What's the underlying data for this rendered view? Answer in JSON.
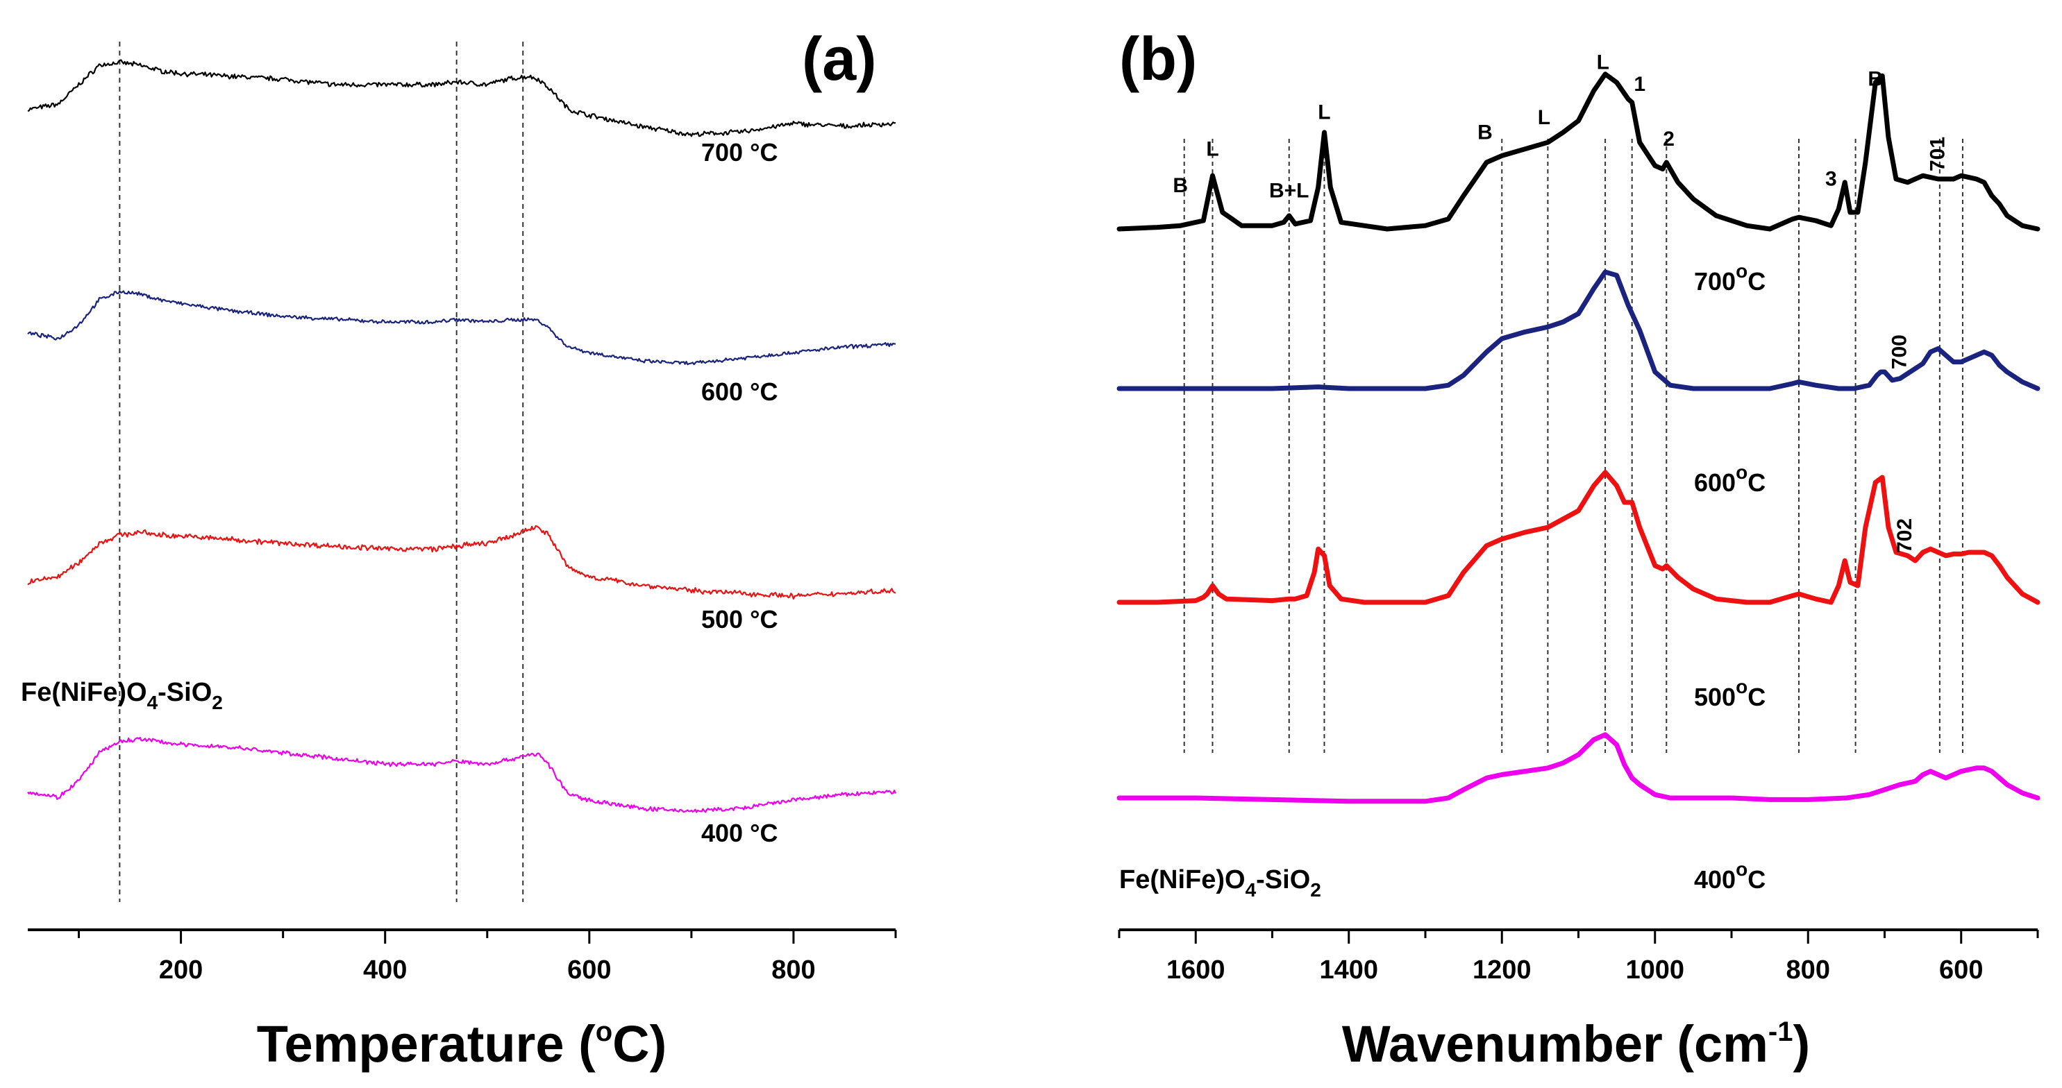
{
  "chart_data": [
    {
      "type": "line",
      "panel_label": "(a)",
      "title": "",
      "xlabel": "Temperature (°C)",
      "xlabel_main": "Temperature (",
      "xlabel_unit_sup": "o",
      "xlabel_tail": "C)",
      "ylabel": "",
      "xlim": [
        50,
        900
      ],
      "xticks": [
        200,
        400,
        600,
        800
      ],
      "xtick_labels": [
        "200",
        "400",
        "600",
        "800"
      ],
      "sample_label": {
        "main": "Fe(NiFe)O",
        "sub1": "4",
        "mid": "-SiO",
        "sub2": "2"
      },
      "reference_lines_x": [
        140,
        470,
        535
      ],
      "series": [
        {
          "name": "700 °C",
          "label": "700 °C",
          "color": "#000000",
          "noise": 0.45,
          "x": [
            50,
            80,
            100,
            120,
            140,
            160,
            180,
            200,
            250,
            300,
            350,
            400,
            450,
            470,
            500,
            520,
            540,
            550,
            560,
            570,
            580,
            600,
            650,
            700,
            750,
            800,
            850,
            900
          ],
          "y": [
            0.15,
            0.25,
            0.6,
            0.95,
            1.0,
            0.95,
            0.85,
            0.8,
            0.75,
            0.7,
            0.6,
            0.6,
            0.6,
            0.65,
            0.6,
            0.7,
            0.75,
            0.7,
            0.55,
            0.35,
            0.15,
            0.05,
            -0.15,
            -0.3,
            -0.25,
            -0.1,
            -0.15,
            -0.1
          ]
        },
        {
          "name": "600 °C",
          "label": "600 °C",
          "color": "#1a237e",
          "noise": 0.35,
          "x": [
            50,
            80,
            100,
            120,
            140,
            160,
            180,
            200,
            250,
            300,
            350,
            400,
            450,
            470,
            500,
            520,
            540,
            550,
            560,
            570,
            580,
            600,
            650,
            700,
            750,
            800,
            850,
            900
          ],
          "y": [
            0.25,
            0.15,
            0.4,
            0.85,
            1.0,
            0.95,
            0.85,
            0.78,
            0.65,
            0.55,
            0.5,
            0.45,
            0.45,
            0.5,
            0.45,
            0.48,
            0.5,
            0.48,
            0.35,
            0.15,
            0.0,
            -0.1,
            -0.25,
            -0.3,
            -0.2,
            -0.1,
            0.0,
            0.05
          ]
        },
        {
          "name": "500 °C",
          "label": "500 °C",
          "color": "#ee1111",
          "noise": 0.5,
          "x": [
            50,
            80,
            100,
            120,
            140,
            160,
            180,
            200,
            250,
            300,
            350,
            400,
            450,
            470,
            500,
            520,
            540,
            550,
            560,
            570,
            580,
            600,
            650,
            700,
            750,
            800,
            850,
            900
          ],
          "y": [
            -0.05,
            0.05,
            0.3,
            0.65,
            0.8,
            0.85,
            0.8,
            0.78,
            0.72,
            0.65,
            0.6,
            0.55,
            0.55,
            0.6,
            0.65,
            0.75,
            0.9,
            0.95,
            0.8,
            0.5,
            0.2,
            0.05,
            -0.1,
            -0.2,
            -0.25,
            -0.3,
            -0.25,
            -0.2
          ]
        },
        {
          "name": "400 °C",
          "label": "400 °C",
          "color": "#ee00ee",
          "noise": 0.4,
          "x": [
            50,
            80,
            100,
            120,
            140,
            160,
            180,
            200,
            250,
            300,
            350,
            400,
            450,
            470,
            500,
            520,
            540,
            550,
            560,
            570,
            580,
            600,
            650,
            700,
            750,
            800,
            850,
            900
          ],
          "y": [
            0.05,
            -0.05,
            0.25,
            0.75,
            0.95,
            1.0,
            0.95,
            0.9,
            0.85,
            0.75,
            0.65,
            0.55,
            0.55,
            0.6,
            0.55,
            0.62,
            0.72,
            0.72,
            0.55,
            0.25,
            0.0,
            -0.1,
            -0.25,
            -0.3,
            -0.25,
            -0.1,
            0.0,
            0.05
          ]
        }
      ]
    },
    {
      "type": "line",
      "panel_label": "(b)",
      "title": "",
      "xlabel": "Wavenumber (cm-1)",
      "xlabel_main": "Wavenumber (cm",
      "xlabel_unit_sup": "-1",
      "xlabel_tail": ")",
      "ylabel": "",
      "xlim": [
        1700,
        500
      ],
      "xticks": [
        1600,
        1400,
        1200,
        1000,
        800,
        600
      ],
      "xtick_labels": [
        "1600",
        "1400",
        "1200",
        "1000",
        "800",
        "600"
      ],
      "sample_label": {
        "main": "Fe(NiFe)O",
        "sub1": "4",
        "mid": "-SiO",
        "sub2": "2"
      },
      "reference_lines_x": [
        1615,
        1578,
        1478,
        1432,
        1200,
        1140,
        1065,
        1030,
        985,
        812,
        738,
        628,
        598
      ],
      "peak_labels": [
        {
          "text": "B",
          "x": 1620,
          "y": 0.22
        },
        {
          "text": "L",
          "x": 1578,
          "y": 0.44
        },
        {
          "text": "B+L",
          "x": 1478,
          "y": 0.19
        },
        {
          "text": "L",
          "x": 1432,
          "y": 0.66
        },
        {
          "text": "B",
          "x": 1222,
          "y": 0.54
        },
        {
          "text": "L",
          "x": 1145,
          "y": 0.63
        },
        {
          "text": "L",
          "x": 1068,
          "y": 0.96
        },
        {
          "text": "1",
          "x": 1020,
          "y": 0.83
        },
        {
          "text": "2",
          "x": 982,
          "y": 0.5
        },
        {
          "text": "3",
          "x": 770,
          "y": 0.26
        },
        {
          "text": "B",
          "x": 712,
          "y": 0.86
        }
      ],
      "rotated_labels": [
        {
          "text": "701",
          "x": 622,
          "y": 0.45
        },
        {
          "text": "700",
          "x": 672,
          "y": 0.22
        },
        {
          "text": "702",
          "x": 665,
          "y": 0.4
        }
      ],
      "series": [
        {
          "name": "700 °C",
          "label_main": "700",
          "label_sup": "o",
          "label_tail": "C",
          "color": "#000000",
          "x": [
            1700,
            1650,
            1620,
            1590,
            1578,
            1565,
            1540,
            1500,
            1485,
            1478,
            1470,
            1450,
            1440,
            1432,
            1424,
            1410,
            1380,
            1350,
            1300,
            1270,
            1250,
            1220,
            1200,
            1170,
            1140,
            1120,
            1100,
            1080,
            1065,
            1050,
            1035,
            1030,
            1020,
            1000,
            990,
            985,
            970,
            950,
            920,
            880,
            850,
            820,
            812,
            790,
            770,
            760,
            752,
            745,
            735,
            725,
            712,
            703,
            695,
            685,
            670,
            650,
            630,
            620,
            610,
            600,
            590,
            580,
            570,
            560,
            550,
            540,
            520,
            500
          ],
          "y": [
            0.0,
            0.01,
            0.02,
            0.05,
            0.32,
            0.1,
            0.02,
            0.02,
            0.04,
            0.08,
            0.03,
            0.05,
            0.25,
            0.58,
            0.25,
            0.04,
            0.02,
            0.0,
            0.02,
            0.06,
            0.2,
            0.4,
            0.44,
            0.48,
            0.52,
            0.58,
            0.65,
            0.83,
            0.93,
            0.88,
            0.78,
            0.76,
            0.52,
            0.38,
            0.36,
            0.4,
            0.28,
            0.18,
            0.08,
            0.02,
            0.0,
            0.06,
            0.07,
            0.05,
            0.02,
            0.12,
            0.28,
            0.1,
            0.1,
            0.4,
            0.88,
            0.92,
            0.55,
            0.3,
            0.28,
            0.32,
            0.3,
            0.3,
            0.3,
            0.32,
            0.31,
            0.3,
            0.28,
            0.2,
            0.15,
            0.08,
            0.02,
            0.0
          ]
        },
        {
          "name": "600 °C",
          "label_main": "600",
          "label_sup": "o",
          "label_tail": "C",
          "color": "#1a237e",
          "x": [
            1700,
            1600,
            1500,
            1440,
            1400,
            1300,
            1270,
            1250,
            1220,
            1200,
            1170,
            1140,
            1120,
            1100,
            1080,
            1065,
            1050,
            1035,
            1020,
            1000,
            980,
            950,
            920,
            880,
            850,
            820,
            812,
            790,
            760,
            740,
            720,
            710,
            705,
            700,
            690,
            680,
            660,
            650,
            640,
            630,
            620,
            610,
            600,
            590,
            580,
            570,
            560,
            550,
            540,
            520,
            500
          ],
          "y": [
            0.0,
            0.0,
            0.0,
            0.01,
            0.0,
            0.0,
            0.02,
            0.08,
            0.22,
            0.3,
            0.34,
            0.37,
            0.4,
            0.45,
            0.6,
            0.7,
            0.68,
            0.5,
            0.35,
            0.1,
            0.02,
            0.0,
            0.0,
            0.0,
            0.0,
            0.03,
            0.04,
            0.02,
            0.0,
            0.0,
            0.02,
            0.08,
            0.1,
            0.1,
            0.05,
            0.06,
            0.12,
            0.15,
            0.22,
            0.24,
            0.2,
            0.16,
            0.16,
            0.18,
            0.2,
            0.22,
            0.2,
            0.14,
            0.1,
            0.04,
            0.0
          ]
        },
        {
          "name": "500 °C",
          "label_main": "500",
          "label_sup": "o",
          "label_tail": "C",
          "color": "#ee1111",
          "x": [
            1700,
            1650,
            1600,
            1590,
            1585,
            1578,
            1570,
            1560,
            1500,
            1478,
            1470,
            1455,
            1445,
            1440,
            1432,
            1425,
            1410,
            1380,
            1300,
            1270,
            1250,
            1220,
            1200,
            1170,
            1140,
            1120,
            1100,
            1080,
            1065,
            1050,
            1040,
            1030,
            1020,
            1000,
            990,
            985,
            970,
            950,
            920,
            880,
            850,
            820,
            812,
            790,
            770,
            760,
            752,
            745,
            735,
            725,
            712,
            703,
            695,
            685,
            670,
            660,
            650,
            640,
            630,
            620,
            610,
            600,
            590,
            580,
            570,
            560,
            550,
            540,
            520,
            500
          ],
          "y": [
            0.0,
            0.0,
            0.01,
            0.03,
            0.05,
            0.1,
            0.05,
            0.02,
            0.01,
            0.02,
            0.02,
            0.04,
            0.18,
            0.32,
            0.28,
            0.1,
            0.02,
            0.0,
            0.0,
            0.04,
            0.18,
            0.34,
            0.38,
            0.42,
            0.45,
            0.5,
            0.55,
            0.7,
            0.78,
            0.7,
            0.6,
            0.6,
            0.45,
            0.22,
            0.2,
            0.22,
            0.15,
            0.08,
            0.02,
            0.0,
            0.0,
            0.04,
            0.05,
            0.02,
            0.0,
            0.1,
            0.25,
            0.12,
            0.1,
            0.45,
            0.72,
            0.75,
            0.45,
            0.3,
            0.28,
            0.25,
            0.3,
            0.32,
            0.3,
            0.28,
            0.29,
            0.29,
            0.3,
            0.3,
            0.3,
            0.28,
            0.22,
            0.15,
            0.05,
            0.0
          ]
        },
        {
          "name": "400 °C",
          "label_main": "400",
          "label_sup": "o",
          "label_tail": "C",
          "color": "#ee00ee",
          "x": [
            1700,
            1600,
            1500,
            1400,
            1300,
            1270,
            1250,
            1220,
            1200,
            1170,
            1140,
            1120,
            1100,
            1080,
            1065,
            1050,
            1040,
            1030,
            1020,
            1000,
            980,
            950,
            900,
            850,
            800,
            750,
            720,
            700,
            680,
            660,
            650,
            640,
            630,
            620,
            600,
            580,
            570,
            560,
            550,
            540,
            520,
            500
          ],
          "y": [
            0.0,
            0.0,
            -0.01,
            -0.02,
            -0.02,
            0.0,
            0.05,
            0.12,
            0.14,
            0.16,
            0.18,
            0.21,
            0.26,
            0.35,
            0.38,
            0.32,
            0.2,
            0.12,
            0.08,
            0.02,
            0.0,
            0.0,
            0.0,
            -0.01,
            -0.01,
            0.0,
            0.02,
            0.05,
            0.08,
            0.1,
            0.14,
            0.16,
            0.14,
            0.12,
            0.16,
            0.18,
            0.18,
            0.16,
            0.12,
            0.08,
            0.03,
            0.0
          ]
        }
      ]
    }
  ]
}
